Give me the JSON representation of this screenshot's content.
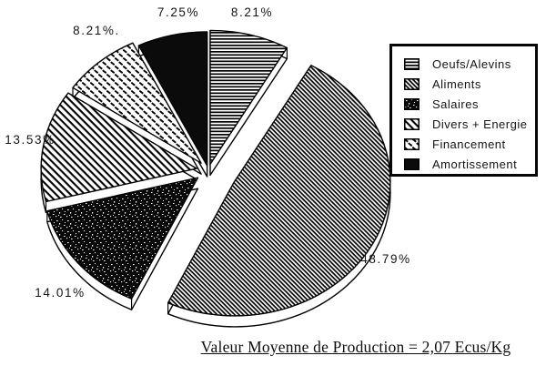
{
  "chart_data": {
    "type": "pie",
    "style": "3d-exploded-monochrome-patterns",
    "title": "",
    "caption": "Valeur Moyenne de Production = 2,07 Ecus/Kg",
    "legend_position": "right",
    "start_angle_deg": 0,
    "direction": "clockwise",
    "units": "%",
    "slices": [
      {
        "label": "Oeufs/Alevins",
        "value": 8.21,
        "display_label": "8.21%",
        "pattern": "horizontal-lines"
      },
      {
        "label": "Aliments",
        "value": 48.79,
        "display_label": "48.79%",
        "pattern": "dense-diagonal-lines"
      },
      {
        "label": "Salaires",
        "value": 14.01,
        "display_label": "14.01%",
        "pattern": "black-speckle"
      },
      {
        "label": "Divers + Energie",
        "value": 13.53,
        "display_label": "13.53%",
        "pattern": "diagonal-lines"
      },
      {
        "label": "Financement",
        "value": 8.21,
        "display_label": "8.21%.",
        "pattern": "dash-grid"
      },
      {
        "label": "Amortissement",
        "value": 7.25,
        "display_label": "7.25%",
        "pattern": "solid-black"
      }
    ],
    "colors": {
      "ink": "#000000",
      "background": "#ffffff"
    }
  }
}
